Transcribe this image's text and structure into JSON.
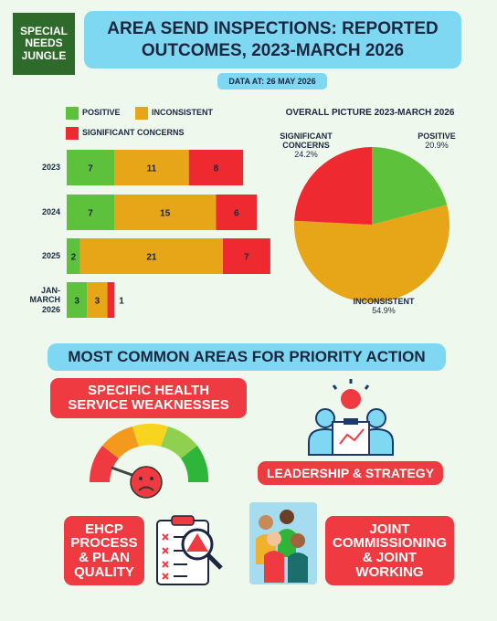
{
  "header": {
    "logo": "SPECIAL NEEDS JUNGLE",
    "title": "AREA SEND INSPECTIONS: REPORTED OUTCOMES, 2023-MARCH 2026",
    "subtitle": "DATA AT: 26 MAY 2026"
  },
  "chart_data": [
    {
      "type": "stacked-hbar",
      "legend": "top",
      "categories": [
        "2023",
        "2024",
        "2025",
        "JAN-MARCH 2026"
      ],
      "series": [
        {
          "name": "POSITIVE",
          "color": "#5dc13c",
          "values": [
            7,
            7,
            2,
            3
          ]
        },
        {
          "name": "INCONSISTENT",
          "color": "#e6a618",
          "values": [
            11,
            15,
            21,
            3
          ]
        },
        {
          "name": "SIGNIFICANT CONCERNS",
          "color": "#ee2a30",
          "values": [
            8,
            6,
            7,
            1
          ]
        }
      ]
    },
    {
      "type": "pie",
      "title": "OVERALL PICTURE 2023-MARCH 2026",
      "categories": [
        "POSITIVE",
        "INCONSISTENT",
        "SIGNIFICANT CONCERNS"
      ],
      "values": [
        20.9,
        54.9,
        24.2
      ],
      "value_labels": [
        "20.9%",
        "54.9%",
        "24.2%"
      ],
      "colors": [
        "#5dc13c",
        "#e6a618",
        "#ee2a30"
      ]
    }
  ],
  "priority": {
    "title": "MOST COMMON AREAS FOR PRIORITY ACTION",
    "items": [
      "SPECIFIC HEALTH SERVICE WEAKNESSES",
      "LEADERSHIP & STRATEGY",
      "EHCP PROCESS & PLAN QUALITY",
      "JOINT COMMISSIONING & JOINT WORKING"
    ]
  }
}
